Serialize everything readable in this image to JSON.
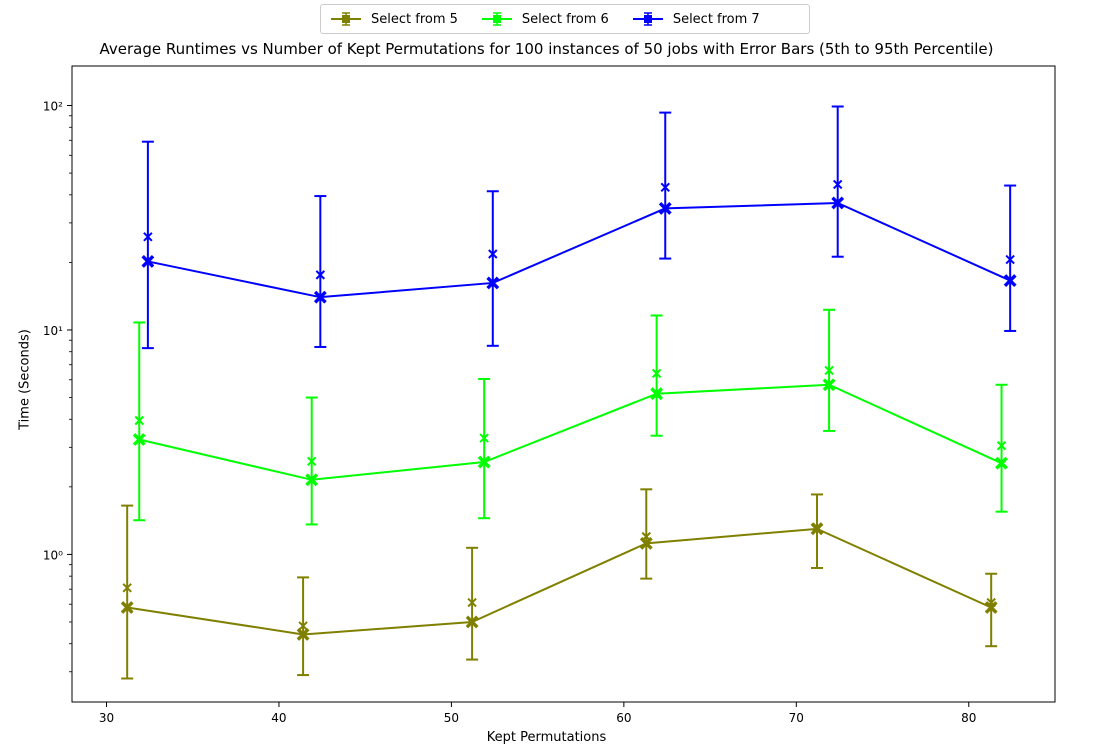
{
  "chart_data": {
    "type": "line",
    "title": "Average Runtimes vs Number of Kept Permutations for 100 instances of 50 jobs with Error Bars (5th to 95th Percentile)",
    "xlabel": "Kept Permutations",
    "ylabel": "Time (Seconds)",
    "yscale": "log",
    "xlim": [
      28,
      85
    ],
    "ylim": [
      0.22,
      150
    ],
    "x_ticks": [
      30,
      40,
      50,
      60,
      70,
      80
    ],
    "x_tick_labels": [
      "30",
      "40",
      "50",
      "60",
      "70",
      "80"
    ],
    "y_ticks": [
      1,
      10,
      100
    ],
    "y_tick_labels": [
      "10⁰",
      "10¹",
      "10²"
    ],
    "grid": false,
    "legend_position": "top-center",
    "error_bars": "5th to 95th percentile",
    "series": [
      {
        "name": "Select from 5",
        "color": "#808000",
        "x": [
          31.2,
          41.4,
          51.2,
          61.3,
          71.2,
          81.3
        ],
        "mean": [
          0.58,
          0.44,
          0.5,
          1.12,
          1.3,
          0.58
        ],
        "median": [
          0.71,
          0.48,
          0.61,
          1.2,
          1.32,
          0.61
        ],
        "p5": [
          0.28,
          0.29,
          0.34,
          0.78,
          0.87,
          0.39
        ],
        "p95": [
          1.65,
          0.79,
          1.07,
          1.95,
          1.85,
          0.82
        ]
      },
      {
        "name": "Select from 6",
        "color": "#00ff00",
        "x": [
          31.9,
          41.9,
          51.9,
          61.9,
          71.9,
          81.9
        ],
        "mean": [
          3.25,
          2.15,
          2.58,
          5.2,
          5.7,
          2.55
        ],
        "median": [
          3.95,
          2.6,
          3.3,
          6.4,
          6.6,
          3.05
        ],
        "p5": [
          1.42,
          1.36,
          1.45,
          3.38,
          3.55,
          1.55
        ],
        "p95": [
          10.8,
          5.0,
          6.05,
          11.6,
          12.3,
          5.7
        ]
      },
      {
        "name": "Select from 7",
        "color": "#0000ff",
        "x": [
          32.4,
          42.4,
          52.4,
          62.4,
          72.4,
          82.4
        ],
        "mean": [
          20.2,
          14.0,
          16.2,
          34.8,
          36.8,
          16.6
        ],
        "median": [
          26.0,
          17.6,
          21.8,
          43.2,
          44.5,
          20.6
        ],
        "p5": [
          8.3,
          8.4,
          8.5,
          20.8,
          21.2,
          9.9
        ],
        "p95": [
          69.0,
          39.5,
          41.5,
          93.0,
          99.0,
          44.0
        ]
      }
    ]
  }
}
